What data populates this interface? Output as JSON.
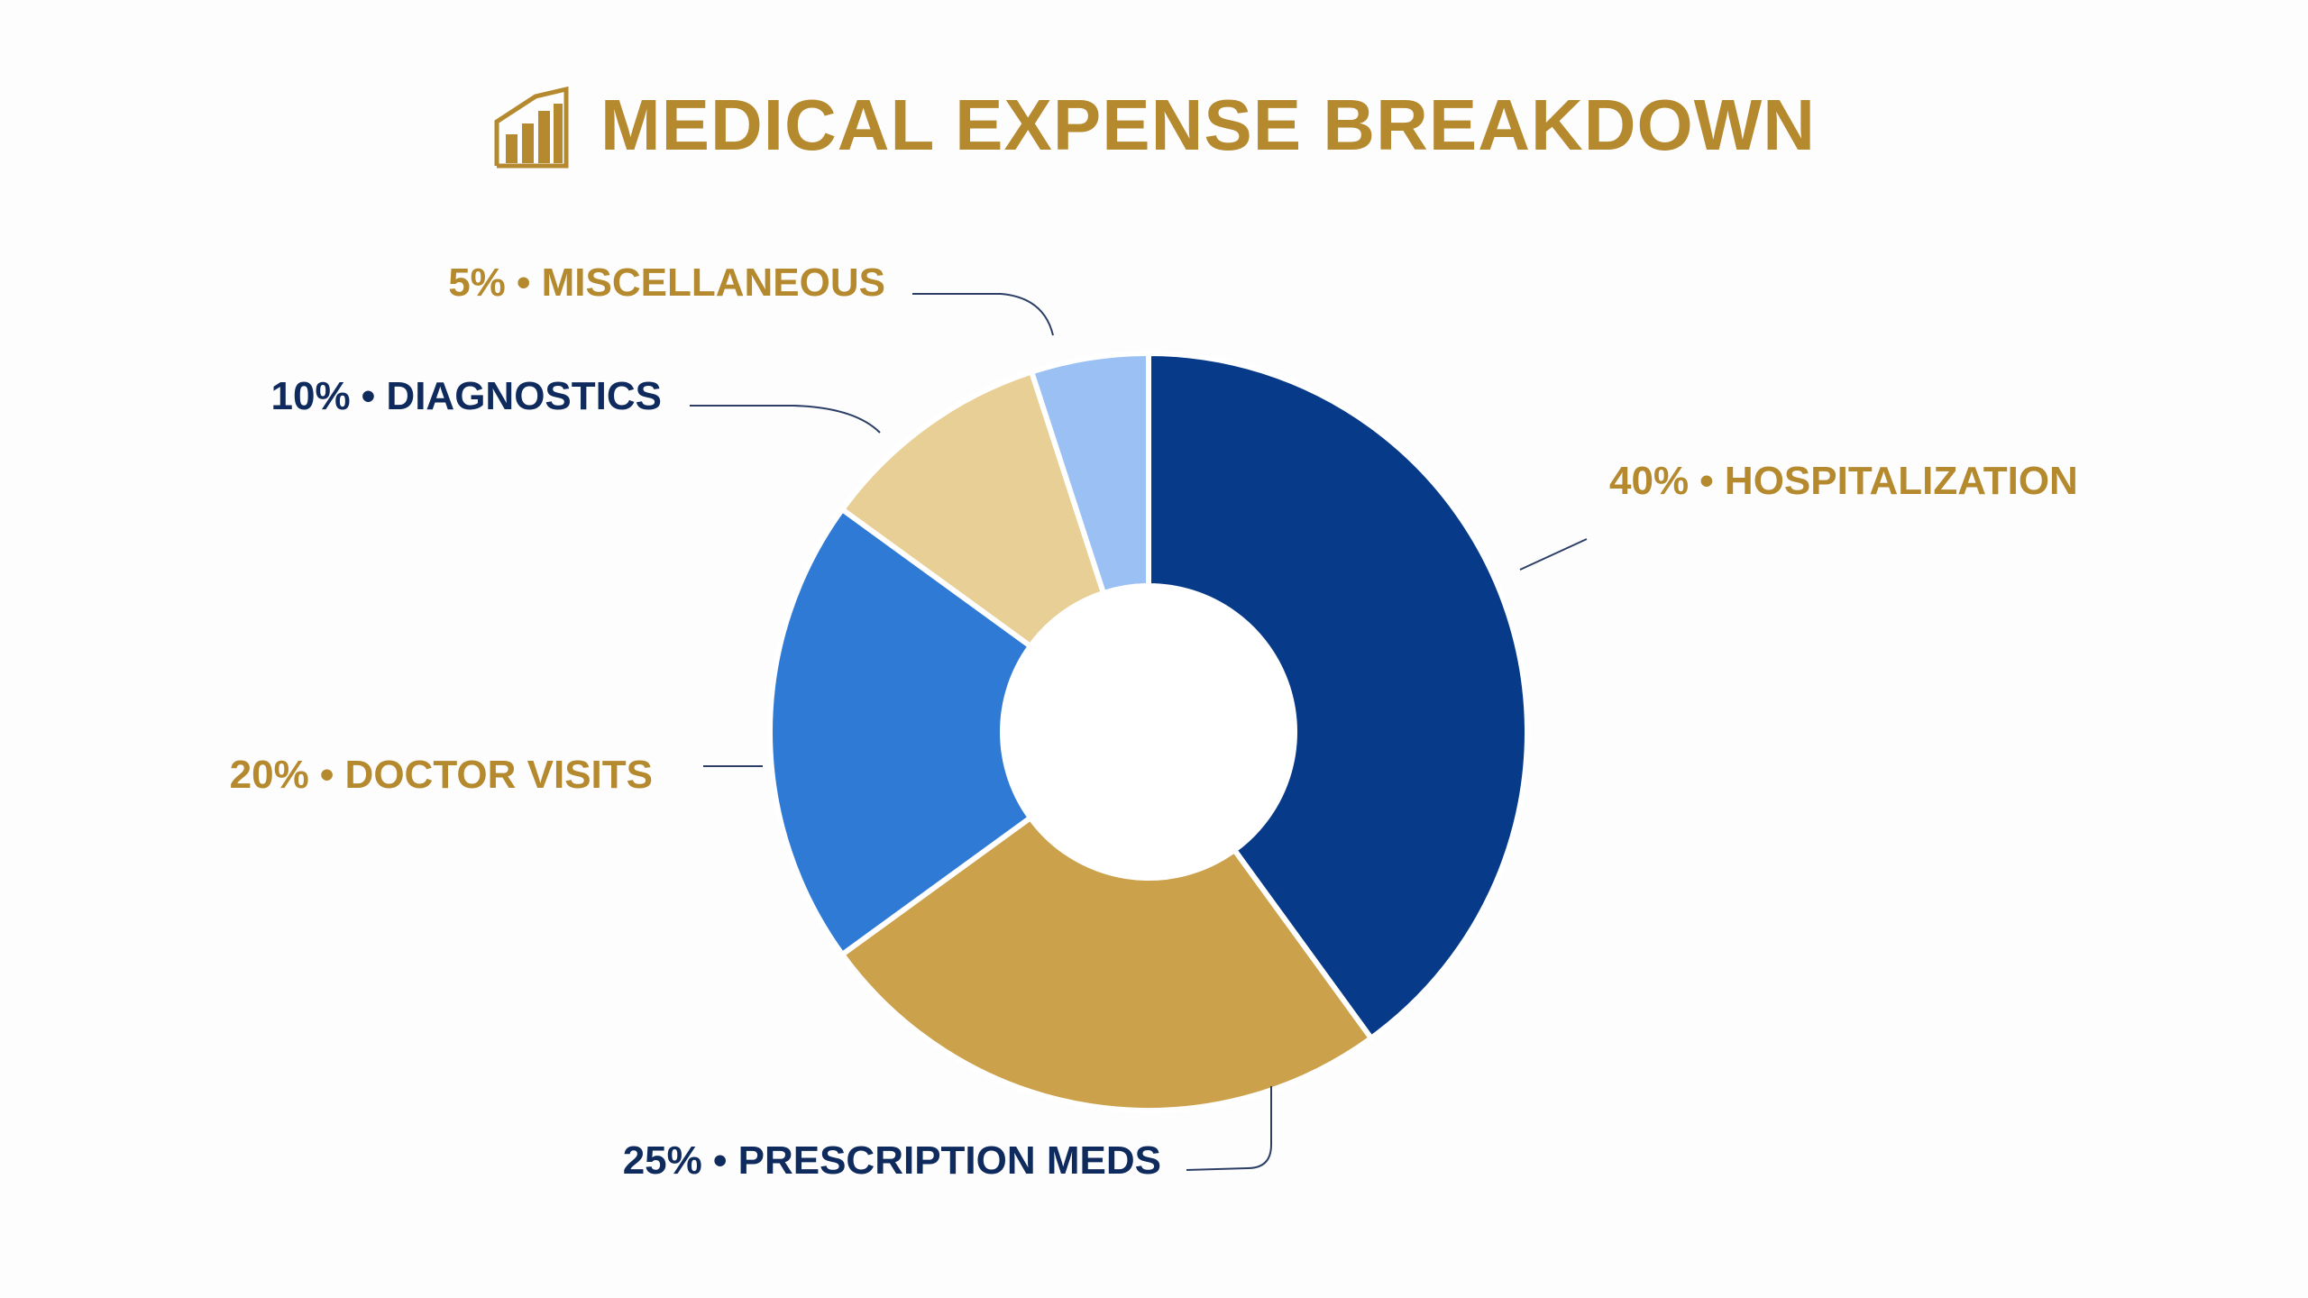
{
  "title": "MEDICAL EXPENSE BREAKDOWN",
  "icon": "bar-chart-icon",
  "colors": {
    "title": "#b5892e",
    "navy": "#0f2a5c",
    "gold": "#b5892e",
    "connector": "#2c3e66",
    "background": "#fdfdfd"
  },
  "chart_data": {
    "type": "pie",
    "style": "donut",
    "title": "MEDICAL EXPENSE BREAKDOWN",
    "unit": "%",
    "slices": [
      {
        "label": "HOSPITALIZATION",
        "value": 40,
        "text": "40% • HOSPITALIZATION",
        "color": "#073b8a",
        "label_color": "#b5892e"
      },
      {
        "label": "PRESCRIPTION MEDS",
        "value": 25,
        "text": "25% • PRESCRIPTION MEDS",
        "color": "#cba14c",
        "label_color": "#0f2a5c"
      },
      {
        "label": "DOCTOR VISITS",
        "value": 20,
        "text": "20% • DOCTOR VISITS",
        "color": "#2f7ad5",
        "label_color": "#b5892e"
      },
      {
        "label": "DIAGNOSTICS",
        "value": 10,
        "text": "10% • DIAGNOSTICS",
        "color": "#e8cf95",
        "label_color": "#0f2a5c"
      },
      {
        "label": "MISCELLANEOUS",
        "value": 5,
        "text": "5% • MISCELLANEOUS",
        "color": "#9bc0f3",
        "label_color": "#b5892e"
      }
    ]
  }
}
